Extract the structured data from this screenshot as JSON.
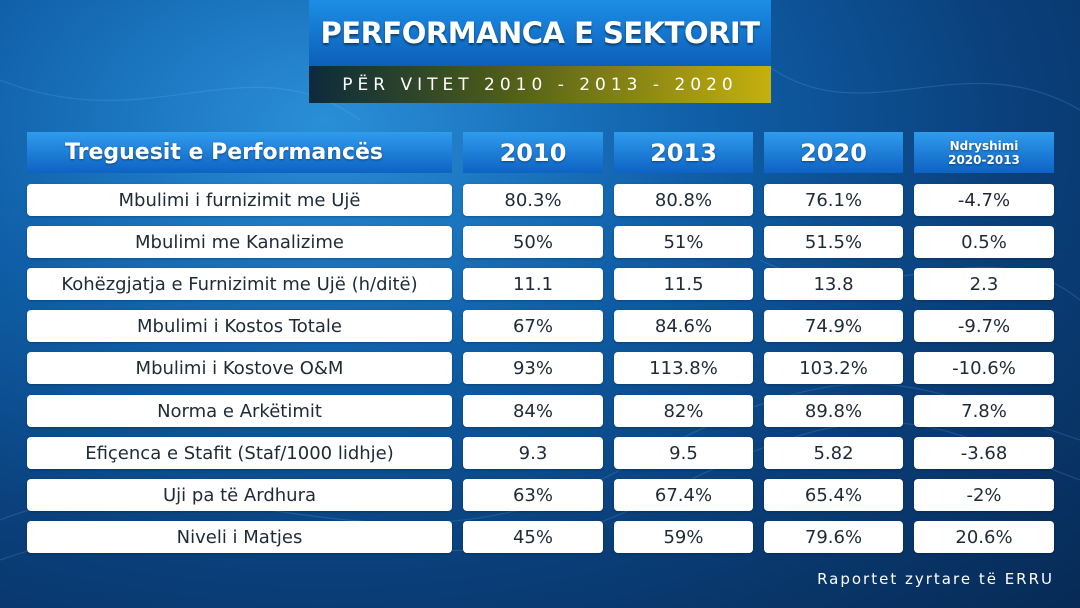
{
  "title": "PERFORMANCA E SEKTORIT",
  "subtitle": "PËR VITET 2010 - 2013 - 2020",
  "table": {
    "header_label": "Treguesit e Performancës",
    "years": [
      "2010",
      "2013",
      "2020"
    ],
    "change_header_line1": "Ndryshimi",
    "change_header_line2": "2020-2013",
    "rows": [
      {
        "label": "Mbulimi i furnizimit me Ujë",
        "v2010": "80.3%",
        "v2013": "80.8%",
        "v2020": "76.1%",
        "change": "-4.7%"
      },
      {
        "label": "Mbulimi me Kanalizime",
        "v2010": "50%",
        "v2013": "51%",
        "v2020": "51.5%",
        "change": "0.5%"
      },
      {
        "label": "Kohëzgjatja e Furnizimit me Ujë (h/ditë)",
        "v2010": "11.1",
        "v2013": "11.5",
        "v2020": "13.8",
        "change": "2.3"
      },
      {
        "label": "Mbulimi i Kostos Totale",
        "v2010": "67%",
        "v2013": "84.6%",
        "v2020": "74.9%",
        "change": "-9.7%"
      },
      {
        "label": "Mbulimi i Kostove O&M",
        "v2010": "93%",
        "v2013": "113.8%",
        "v2020": "103.2%",
        "change": "-10.6%"
      },
      {
        "label": "Norma e Arkëtimit",
        "v2010": "84%",
        "v2013": "82%",
        "v2020": "89.8%",
        "change": "7.8%"
      },
      {
        "label": "Efiçenca e Stafit (Staf/1000 lidhje)",
        "v2010": "9.3",
        "v2013": "9.5",
        "v2020": "5.82",
        "change": "-3.68"
      },
      {
        "label": "Uji pa të Ardhura",
        "v2010": "63%",
        "v2013": "67.4%",
        "v2020": "65.4%",
        "change": "-2%"
      },
      {
        "label": "Niveli i Matjes",
        "v2010": "45%",
        "v2013": "59%",
        "v2020": "79.6%",
        "change": "20.6%"
      }
    ]
  },
  "source": "Raportet zyrtare të ERRU",
  "colors": {
    "header": "#0e62c4",
    "accent_gold": "#c5b00e",
    "background": "#0a3f7a"
  }
}
